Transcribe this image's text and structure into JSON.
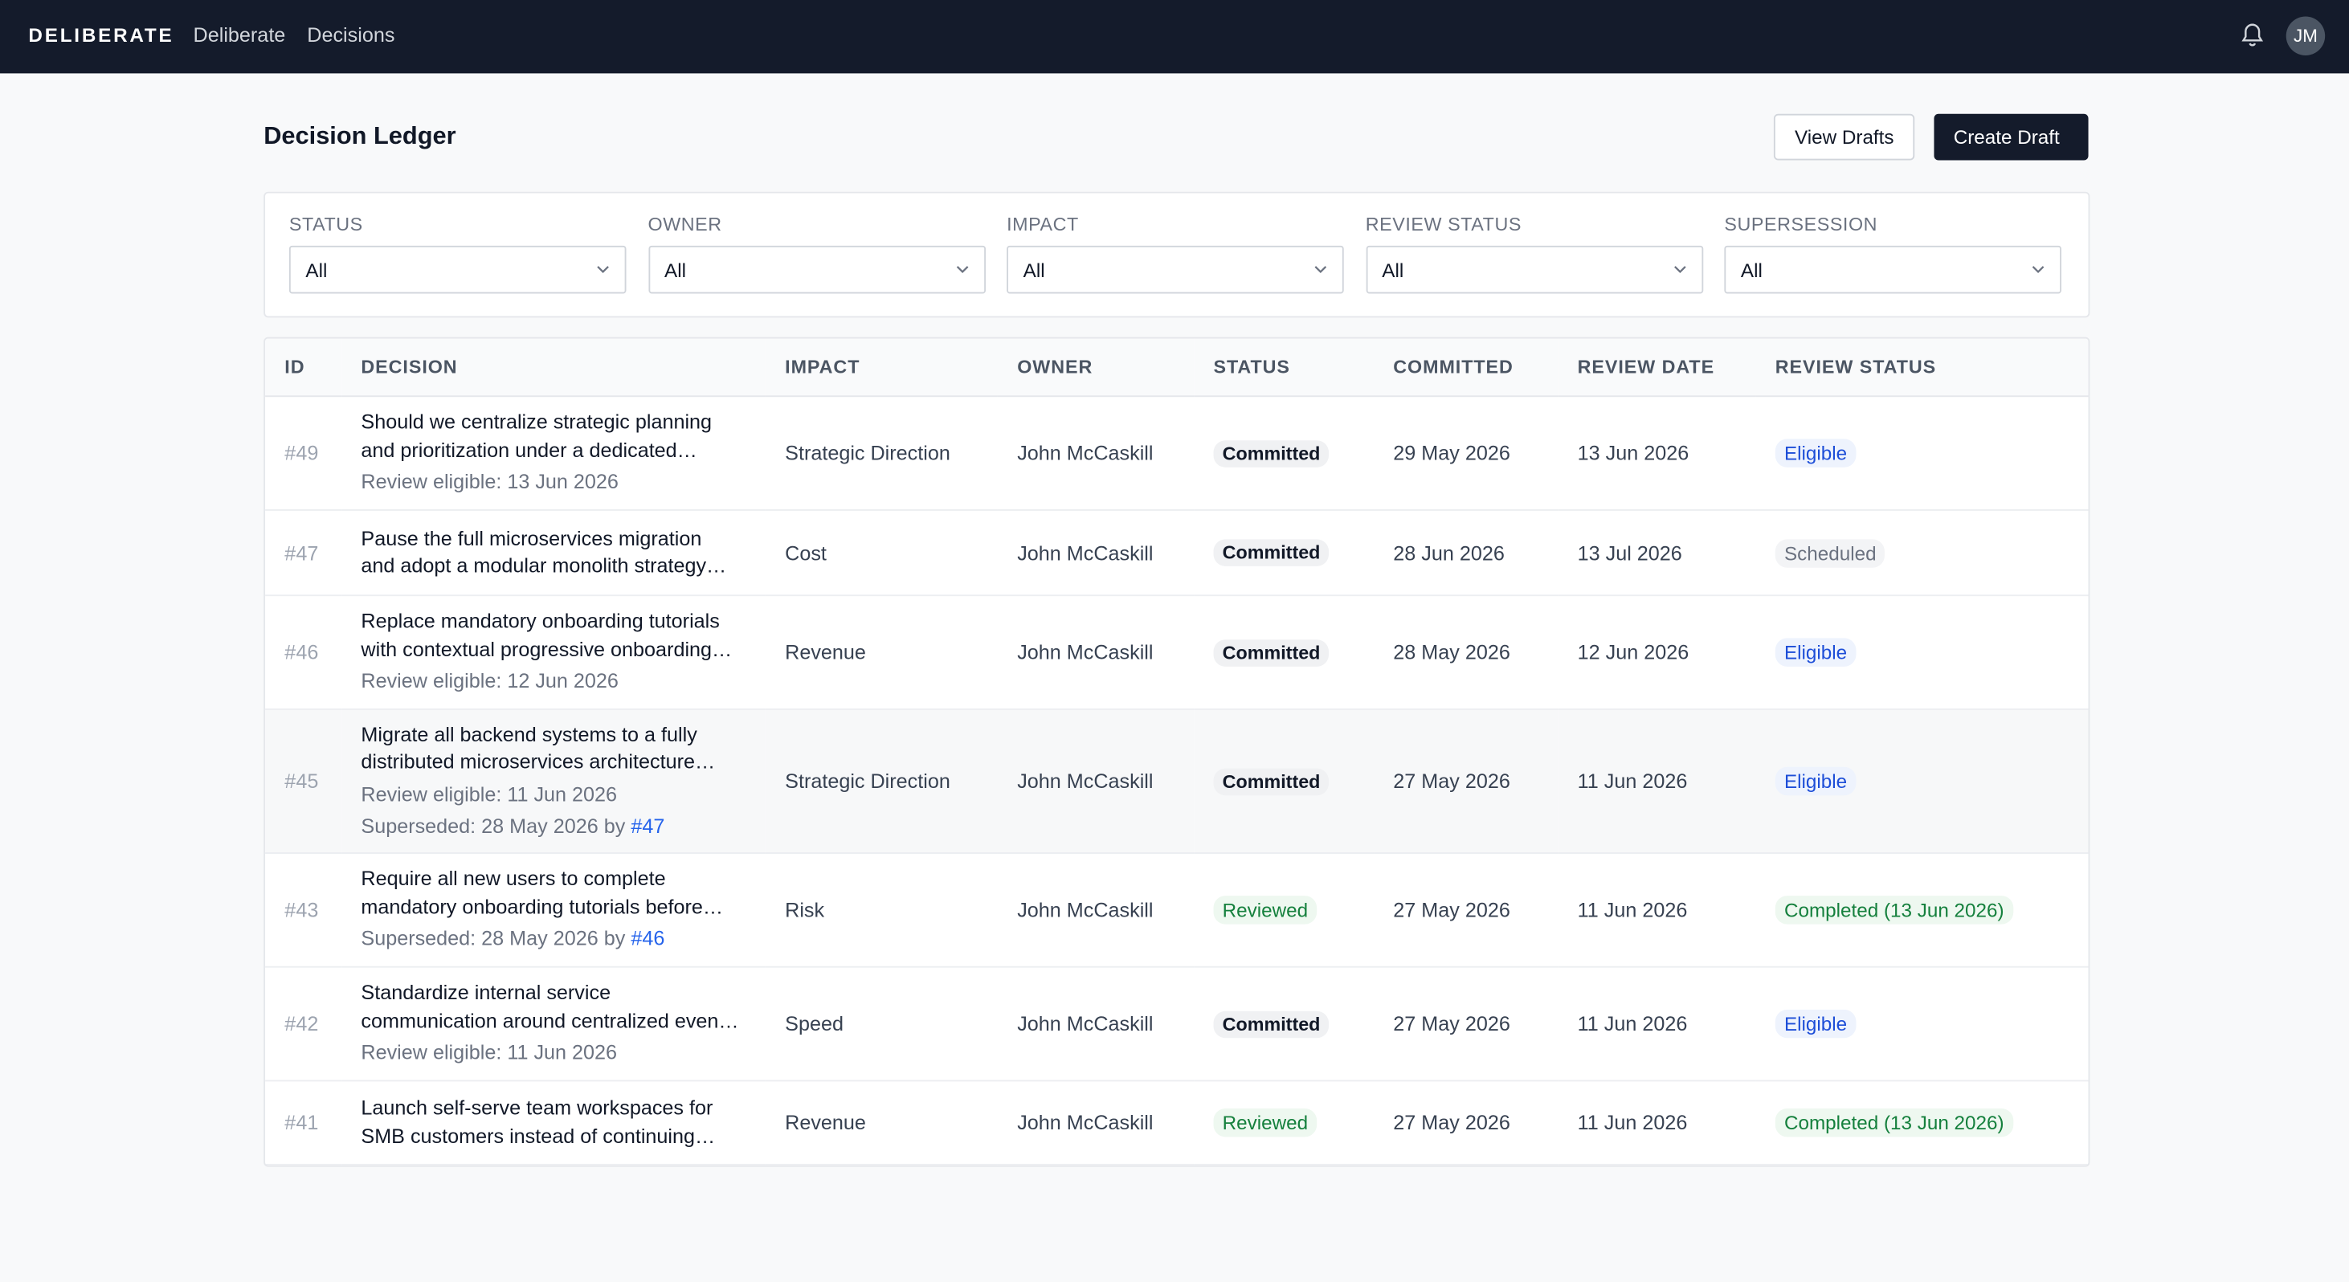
{
  "nav": {
    "brand": "DELIBERATE",
    "links": [
      "Deliberate",
      "Decisions"
    ],
    "avatar": "JM"
  },
  "header": {
    "title": "Decision Ledger",
    "buttons": [
      "View Drafts",
      "Create Draft"
    ]
  },
  "filters": [
    {
      "label": "STATUS",
      "value": "All"
    },
    {
      "label": "OWNER",
      "value": "All"
    },
    {
      "label": "IMPACT",
      "value": "All"
    },
    {
      "label": "REVIEW STATUS",
      "value": "All"
    },
    {
      "label": "SUPERSESSION",
      "value": "All"
    }
  ],
  "table": {
    "columns": [
      "ID",
      "DECISION",
      "IMPACT",
      "OWNER",
      "STATUS",
      "COMMITTED",
      "REVIEW DATE",
      "REVIEW STATUS"
    ],
    "rows": [
      {
        "id": "#49",
        "decision": [
          "Should we centralize strategic planning",
          "and prioritization under a dedicated…"
        ],
        "notes": [
          "Review eligible: 13 Jun 2026"
        ],
        "impact": "Strategic Direction",
        "owner": "John McCaskill",
        "status": "Committed",
        "committed": "29 May 2026",
        "review_date": "13 Jun 2026",
        "review_status": "Eligible"
      },
      {
        "id": "#47",
        "decision": [
          "Pause the full microservices migration",
          "and adopt a modular monolith strategy…"
        ],
        "notes": [],
        "impact": "Cost",
        "owner": "John McCaskill",
        "status": "Committed",
        "committed": "28 Jun 2026",
        "review_date": "13 Jul 2026",
        "review_status": "Scheduled"
      },
      {
        "id": "#46",
        "decision": [
          "Replace mandatory onboarding tutorials",
          "with contextual progressive onboarding…"
        ],
        "notes": [
          "Review eligible: 12 Jun 2026"
        ],
        "impact": "Revenue",
        "owner": "John McCaskill",
        "status": "Committed",
        "committed": "28 May 2026",
        "review_date": "12 Jun 2026",
        "review_status": "Eligible"
      },
      {
        "id": "#45",
        "decision": [
          "Migrate all backend systems to a fully",
          "distributed microservices architecture…"
        ],
        "notes": [
          "Review eligible: 11 Jun 2026"
        ],
        "superseded": {
          "text": "Superseded: 28 May 2026 by",
          "link": "#47"
        },
        "impact": "Strategic Direction",
        "owner": "John McCaskill",
        "status": "Committed",
        "committed": "27 May 2026",
        "review_date": "11 Jun 2026",
        "review_status": "Eligible"
      },
      {
        "id": "#43",
        "decision": [
          "Require all new users to complete",
          "mandatory onboarding tutorials before…"
        ],
        "notes": [],
        "superseded": {
          "text": "Superseded: 28 May 2026 by",
          "link": "#46"
        },
        "impact": "Risk",
        "owner": "John McCaskill",
        "status": "Reviewed",
        "committed": "27 May 2026",
        "review_date": "11 Jun 2026",
        "review_status": "Completed (13 Jun 2026)"
      },
      {
        "id": "#42",
        "decision": [
          "Standardize internal service",
          "communication around centralized even…"
        ],
        "notes": [
          "Review eligible: 11 Jun 2026"
        ],
        "impact": "Speed",
        "owner": "John McCaskill",
        "status": "Committed",
        "committed": "27 May 2026",
        "review_date": "11 Jun 2026",
        "review_status": "Eligible"
      },
      {
        "id": "#41",
        "decision": [
          "Launch self-serve team workspaces for",
          "SMB customers instead of continuing…"
        ],
        "notes": [],
        "impact": "Revenue",
        "owner": "John McCaskill",
        "status": "Reviewed",
        "committed": "27 May 2026",
        "review_date": "11 Jun 2026",
        "review_status": "Completed (13 Jun 2026)"
      }
    ]
  }
}
